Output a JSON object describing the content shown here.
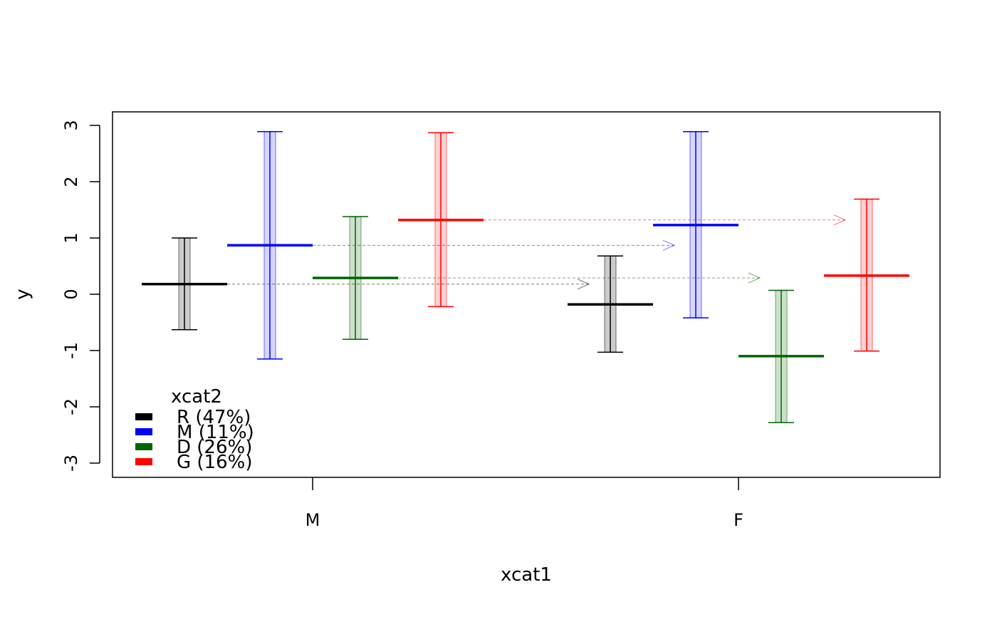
{
  "chart_data": {
    "type": "errorbar",
    "xlabel": "xcat1",
    "ylabel": "y",
    "ylim": [
      -3.25,
      3.25
    ],
    "yticks": [
      -3,
      -2,
      -1,
      0,
      1,
      2,
      3
    ],
    "categories": [
      "M",
      "F"
    ],
    "legend": {
      "title": "xcat2",
      "position": "bottom-left"
    },
    "series": [
      {
        "name": "R (47%)",
        "color": "#000000",
        "fill": "rgba(0,0,0,0.2)",
        "points": [
          {
            "category": "M",
            "mean": 0.18,
            "lower": -0.63,
            "upper": 1.0
          },
          {
            "category": "F",
            "mean": -0.18,
            "lower": -1.03,
            "upper": 0.68
          }
        ]
      },
      {
        "name": "M (11%)",
        "color": "#0000ff",
        "fill": "rgba(0,0,255,0.16)",
        "points": [
          {
            "category": "M",
            "mean": 0.87,
            "lower": -1.15,
            "upper": 2.89
          },
          {
            "category": "F",
            "mean": 1.23,
            "lower": -0.42,
            "upper": 2.89
          }
        ]
      },
      {
        "name": "D (26%)",
        "color": "#006400",
        "fill": "rgba(0,100,0,0.2)",
        "points": [
          {
            "category": "M",
            "mean": 0.29,
            "lower": -0.8,
            "upper": 1.38
          },
          {
            "category": "F",
            "mean": -1.1,
            "lower": -2.28,
            "upper": 0.07
          }
        ]
      },
      {
        "name": "G (16%)",
        "color": "#ff0000",
        "fill": "rgba(255,0,0,0.18)",
        "points": [
          {
            "category": "M",
            "mean": 1.32,
            "lower": -0.22,
            "upper": 2.87
          },
          {
            "category": "F",
            "mean": 0.33,
            "lower": -1.01,
            "upper": 1.69
          }
        ]
      }
    ]
  }
}
